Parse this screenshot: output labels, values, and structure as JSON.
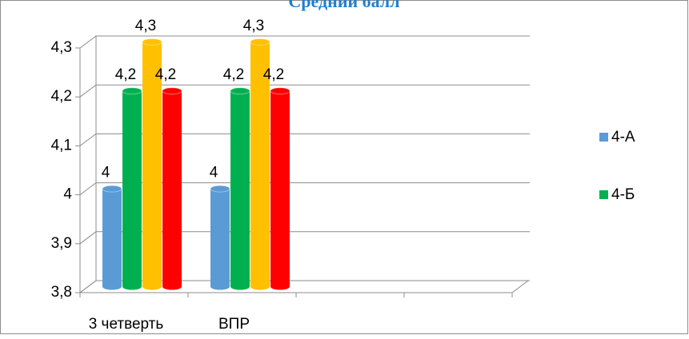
{
  "chart_data": {
    "type": "bar",
    "title": "Средний балл",
    "categories": [
      "3 четверть",
      "ВПР",
      null,
      null
    ],
    "series": [
      {
        "name": "4-А",
        "color": "#5b9bd5",
        "values": [
          4,
          4,
          null,
          null
        ],
        "value_labels": [
          "4",
          "4",
          null,
          null
        ]
      },
      {
        "name": "4-Б",
        "color": "#00b050",
        "values": [
          4.2,
          4.2,
          null,
          null
        ],
        "value_labels": [
          "4,2",
          "4,2",
          null,
          null
        ]
      },
      {
        "color": "#ffc000",
        "values": [
          4.3,
          4.3,
          null,
          null
        ],
        "value_labels": [
          "4,3",
          "4,3",
          null,
          null
        ]
      },
      {
        "color": "#ff0000",
        "values": [
          4.2,
          4.2,
          null,
          null
        ],
        "value_labels": [
          "4,2",
          "4,2",
          null,
          null
        ]
      }
    ],
    "ylim": [
      3.8,
      4.3
    ],
    "yticks": [
      {
        "value": 3.8,
        "label": "3,8"
      },
      {
        "value": 3.9,
        "label": "3,9"
      },
      4,
      {
        "value": 4.1,
        "label": "4,1"
      },
      {
        "value": 4.2,
        "label": "4,2"
      },
      {
        "value": 4.3,
        "label": "4,3"
      }
    ],
    "grid": true,
    "legend": "right"
  }
}
